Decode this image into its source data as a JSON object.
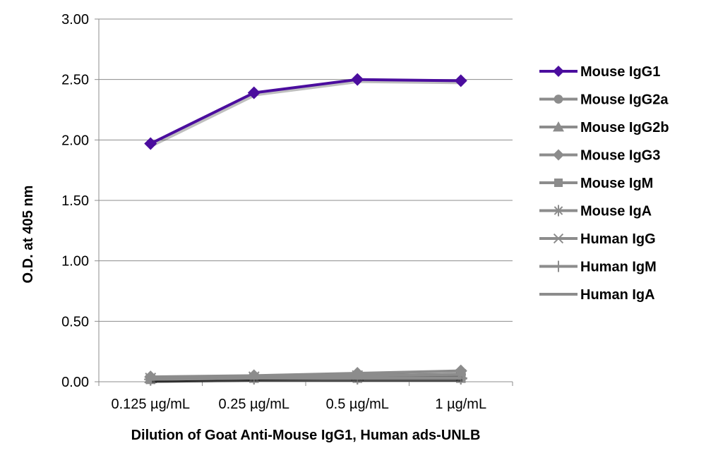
{
  "chart_data": {
    "type": "line",
    "title": "",
    "xlabel": "Dilution of Goat Anti-Mouse IgG1, Human ads-UNLB",
    "ylabel": "O.D. at 405 nm",
    "categories": [
      "0.125 µg/mL",
      "0.25 µg/mL",
      "0.5 µg/mL",
      "1 µg/mL"
    ],
    "ylim": [
      0,
      3.0
    ],
    "yticks": [
      "0.00",
      "0.50",
      "1.00",
      "1.50",
      "2.00",
      "2.50",
      "3.00"
    ],
    "grid": "horizontal",
    "legend": "right",
    "series": [
      {
        "name": "Mouse IgG1",
        "values": [
          1.97,
          2.39,
          2.5,
          2.49
        ],
        "color": "#4B0D9E",
        "marker": "diamond"
      },
      {
        "name": "Mouse IgG2a",
        "values": [
          0.03,
          0.04,
          0.05,
          0.06
        ],
        "color": "#8C8C8C",
        "marker": "circle"
      },
      {
        "name": "Mouse IgG2b",
        "values": [
          0.03,
          0.04,
          0.05,
          0.06
        ],
        "color": "#8C8C8C",
        "marker": "triangle"
      },
      {
        "name": "Mouse IgG3",
        "values": [
          0.04,
          0.05,
          0.07,
          0.09
        ],
        "color": "#8C8C8C",
        "marker": "diamond"
      },
      {
        "name": "Mouse IgM",
        "values": [
          0.02,
          0.03,
          0.03,
          0.03
        ],
        "color": "#8C8C8C",
        "marker": "square"
      },
      {
        "name": "Mouse IgA",
        "values": [
          0.02,
          0.03,
          0.03,
          0.03
        ],
        "color": "#8C8C8C",
        "marker": "asterisk"
      },
      {
        "name": "Human IgG",
        "values": [
          0.03,
          0.04,
          0.05,
          0.06
        ],
        "color": "#8C8C8C",
        "marker": "x"
      },
      {
        "name": "Human IgM",
        "values": [
          0.02,
          0.03,
          0.03,
          0.03
        ],
        "color": "#8C8C8C",
        "marker": "plus"
      },
      {
        "name": "Human IgA",
        "values": [
          0.02,
          0.03,
          0.03,
          0.03
        ],
        "color": "#8C8C8C",
        "marker": "none"
      }
    ]
  }
}
